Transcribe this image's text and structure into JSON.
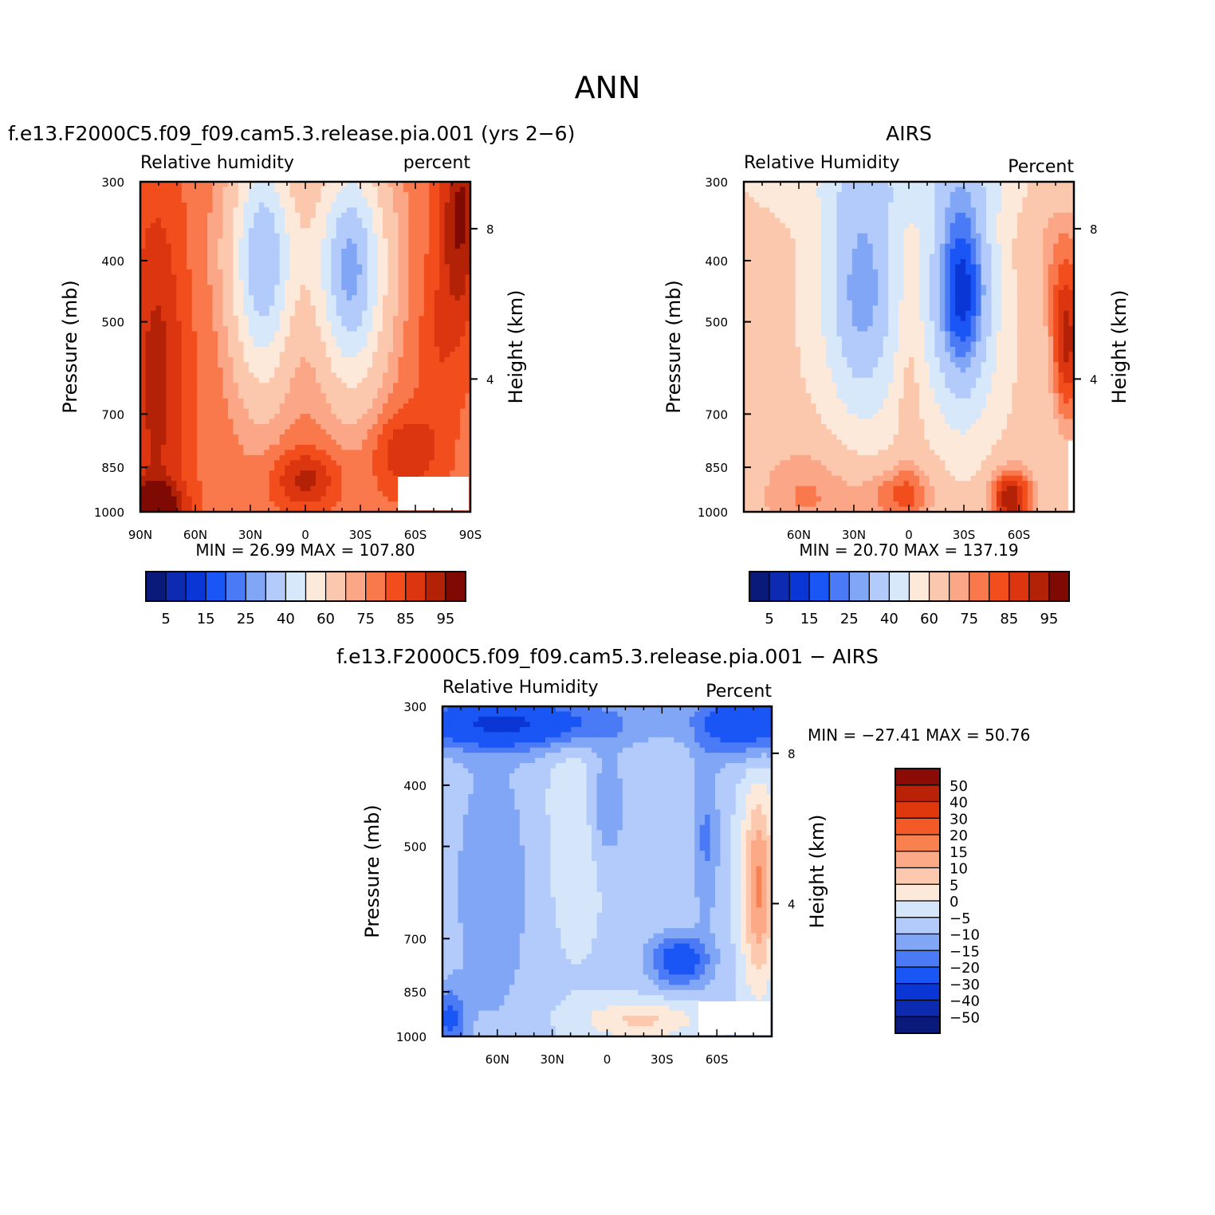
{
  "figure": {
    "title": "ANN"
  },
  "panels": [
    {
      "id": "model",
      "heading": "f.e13.F2000C5.f09_f09.cam5.3.release.pia.001 (yrs 2−6)",
      "left_label": "Relative humidity",
      "right_label": "percent",
      "y_label": "Pressure (mb)",
      "y2_label": "Height (km)",
      "y_ticks": [
        "300",
        "400",
        "500",
        "700",
        "850",
        "1000"
      ],
      "y2_ticks": [
        "8",
        "4"
      ],
      "x_ticks": [
        "90N",
        "60N",
        "30N",
        "0",
        "30S",
        "60S",
        "90S"
      ],
      "stats": "MIN =   26.99   MAX =  107.80"
    },
    {
      "id": "airs",
      "heading": "AIRS",
      "left_label": "Relative Humidity",
      "right_label": "Percent",
      "y_label": "Pressure (mb)",
      "y2_label": "Height (km)",
      "y_ticks": [
        "300",
        "400",
        "500",
        "700",
        "850",
        "1000"
      ],
      "y2_ticks": [
        "8",
        "4"
      ],
      "x_ticks": [
        "60N",
        "30N",
        "0",
        "30S",
        "60S"
      ],
      "stats": "MIN =   20.70   MAX =  137.19"
    },
    {
      "id": "diff",
      "heading": "f.e13.F2000C5.f09_f09.cam5.3.release.pia.001 − AIRS",
      "left_label": "Relative Humidity",
      "right_label": "Percent",
      "y_label": "Pressure (mb)",
      "y2_label": "Height (km)",
      "y_ticks": [
        "300",
        "400",
        "500",
        "700",
        "850",
        "1000"
      ],
      "y2_ticks": [
        "8",
        "4"
      ],
      "x_ticks": [
        "60N",
        "30N",
        "0",
        "30S",
        "60S"
      ],
      "stats": "MIN = −27.41   MAX =   50.76"
    }
  ],
  "colorbars": {
    "horizontal_labels": [
      "5",
      "15",
      "25",
      "40",
      "60",
      "75",
      "85",
      "95"
    ],
    "horizontal_colors": [
      "#0a1a7a",
      "#0c2bb0",
      "#0a36d6",
      "#1a55f5",
      "#4a7af5",
      "#80a6f5",
      "#b3cbfa",
      "#d6e8fa",
      "#fde9da",
      "#fcc8ad",
      "#fba787",
      "#f9794d",
      "#f24e1d",
      "#dc3610",
      "#b32206",
      "#7f0a04"
    ],
    "diff_labels": [
      "50",
      "40",
      "30",
      "20",
      "15",
      "10",
      "5",
      "0",
      "−5",
      "−10",
      "−15",
      "−20",
      "−30",
      "−40",
      "−50"
    ],
    "diff_colors": [
      "#8b0c07",
      "#ba2208",
      "#e0380d",
      "#f35a27",
      "#f9804f",
      "#fba987",
      "#fcc9ae",
      "#fde9da",
      "#d5e6fa",
      "#b3cbfa",
      "#80a6f5",
      "#4a7af5",
      "#1a55f5",
      "#0a36d6",
      "#0c2bb0",
      "#0a1a7a"
    ]
  },
  "chart_data": [
    {
      "type": "heatmap",
      "title": "f.e13.F2000C5.f09_f09.cam5.3.release.pia.001 (yrs 2−6)",
      "variable": "Relative humidity",
      "units": "percent",
      "xlabel": "",
      "ylabel": "Pressure (mb)",
      "y2label": "Height (km)",
      "x": [
        90,
        60,
        30,
        0,
        -30,
        -60,
        -90
      ],
      "y_levels": [
        300,
        400,
        500,
        700,
        850,
        1000
      ],
      "min": 26.99,
      "max": 107.8,
      "contour_levels": [
        5,
        10,
        15,
        20,
        25,
        30,
        40,
        50,
        60,
        70,
        75,
        80,
        85,
        90,
        95
      ]
    },
    {
      "type": "heatmap",
      "title": "AIRS",
      "variable": "Relative Humidity",
      "units": "Percent",
      "xlabel": "",
      "ylabel": "Pressure (mb)",
      "y2label": "Height (km)",
      "x": [
        60,
        30,
        0,
        -30,
        -60
      ],
      "y_levels": [
        300,
        400,
        500,
        700,
        850,
        1000
      ],
      "min": 20.7,
      "max": 137.19,
      "contour_levels": [
        5,
        10,
        15,
        20,
        25,
        30,
        40,
        50,
        60,
        70,
        75,
        80,
        85,
        90,
        95
      ]
    },
    {
      "type": "heatmap",
      "title": "f.e13.F2000C5.f09_f09.cam5.3.release.pia.001 − AIRS",
      "variable": "Relative Humidity",
      "units": "Percent",
      "xlabel": "",
      "ylabel": "Pressure (mb)",
      "y2label": "Height (km)",
      "x": [
        60,
        30,
        0,
        -30,
        -60
      ],
      "y_levels": [
        300,
        400,
        500,
        700,
        850,
        1000
      ],
      "min": -27.41,
      "max": 50.76,
      "contour_levels": [
        -50,
        -40,
        -30,
        -20,
        -15,
        -10,
        -5,
        0,
        5,
        10,
        15,
        20,
        30,
        40,
        50
      ]
    }
  ]
}
